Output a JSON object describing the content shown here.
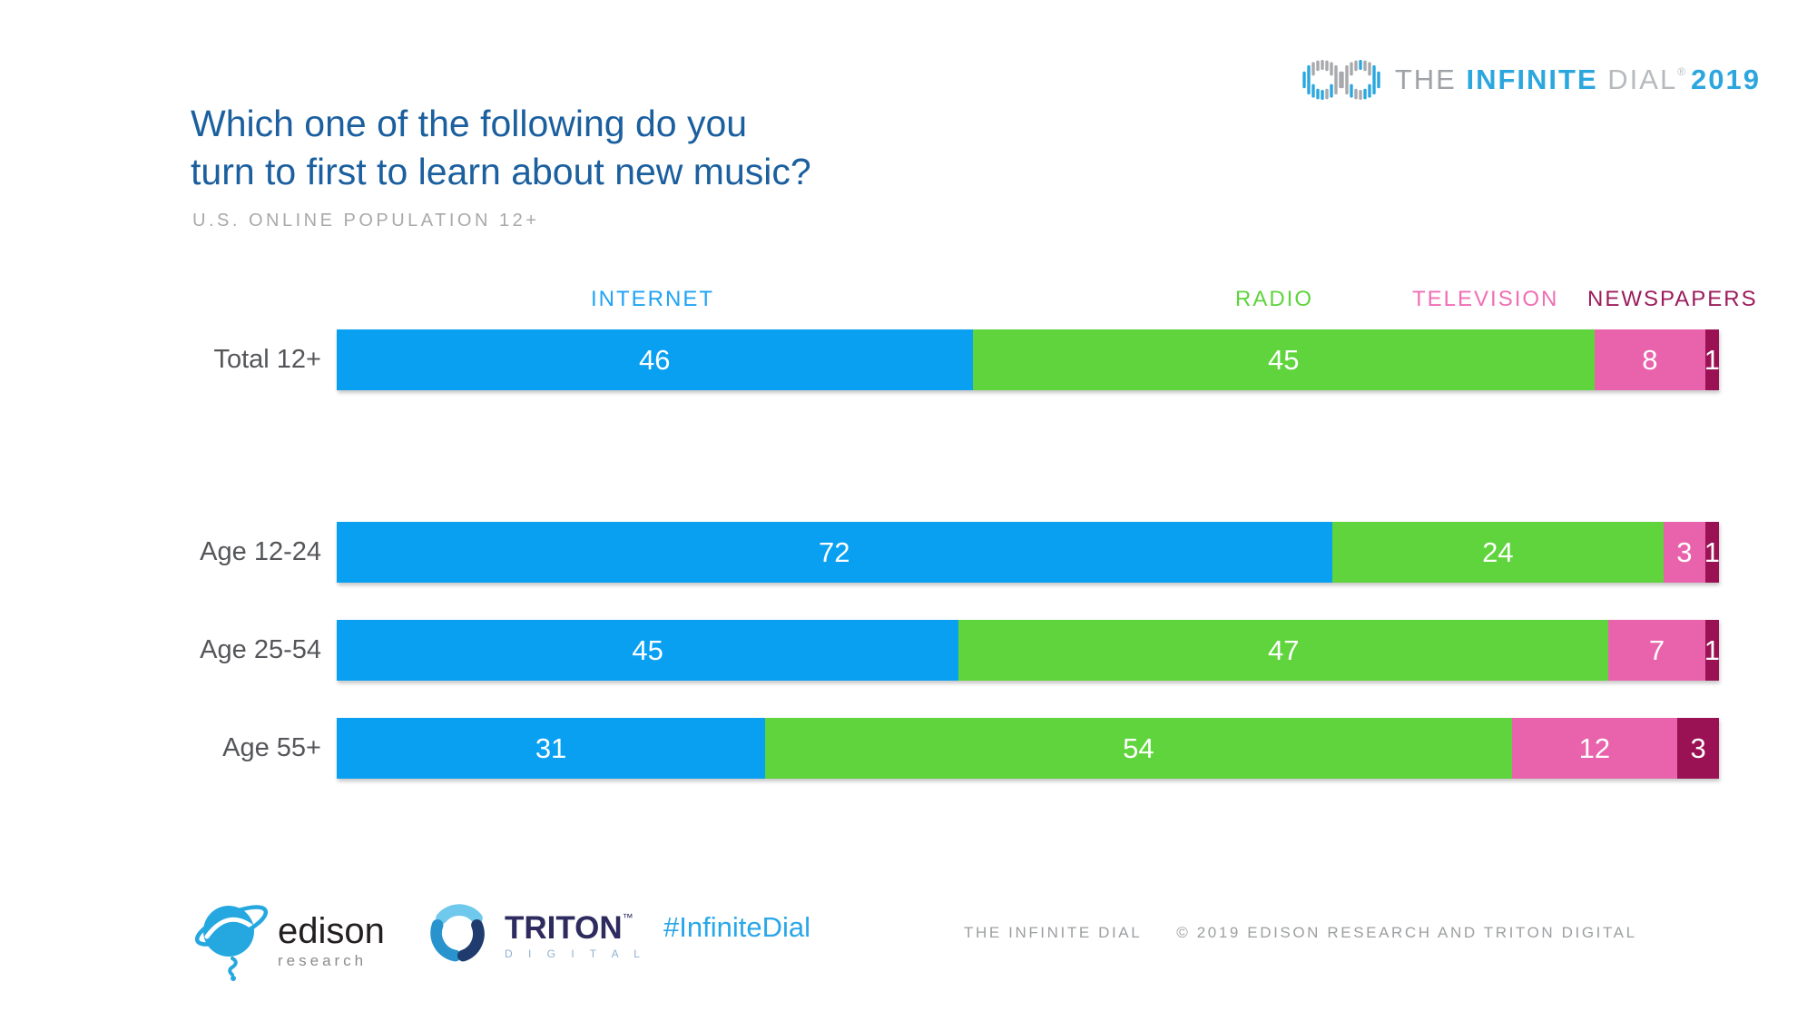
{
  "brand": {
    "the": "THE",
    "infinite": "INFINITE",
    "dial": "DIAL",
    "registered_mark": "®",
    "year": "2019"
  },
  "title": {
    "line1": "Which one of the following do you",
    "line2": "turn to first to learn about new music?"
  },
  "subtitle": "U.S. ONLINE POPULATION 12+",
  "chart_data": {
    "type": "bar",
    "stacked": true,
    "orientation": "horizontal",
    "title": "Which one of the following do you turn to first to learn about new music?",
    "subtitle": "U.S. ONLINE POPULATION 12+",
    "categories": [
      "Total 12+",
      "Age 12-24",
      "Age 25-54",
      "Age 55+"
    ],
    "series": [
      {
        "name": "INTERNET",
        "color": "#0AA0F2",
        "values": [
          46,
          72,
          45,
          31
        ]
      },
      {
        "name": "RADIO",
        "color": "#5FD43C",
        "values": [
          45,
          24,
          47,
          54
        ]
      },
      {
        "name": "TELEVISION",
        "color": "#E863AB",
        "values": [
          8,
          3,
          7,
          12
        ]
      },
      {
        "name": "NEWSPAPERS",
        "color": "#9A1254",
        "values": [
          1,
          1,
          1,
          3
        ]
      }
    ],
    "xlim": [
      0,
      100
    ],
    "legend_position": "top",
    "value_labels": "white, inside segments"
  },
  "legend_colors": {
    "internet": "#1FA3F5",
    "radio": "#5FD43C",
    "television": "#F06EB4",
    "newspapers": "#9C1C5C"
  },
  "footer": {
    "edison": {
      "name": "edison",
      "sub": "research"
    },
    "triton": {
      "name": "TRITON",
      "tm": "™",
      "sub": "D I G I T A L"
    },
    "hashtag": "#InfiniteDial",
    "copyright_left": "THE INFINITE DIAL",
    "copyright_right": "© 2019 EDISON RESEARCH AND TRITON DIGITAL"
  }
}
